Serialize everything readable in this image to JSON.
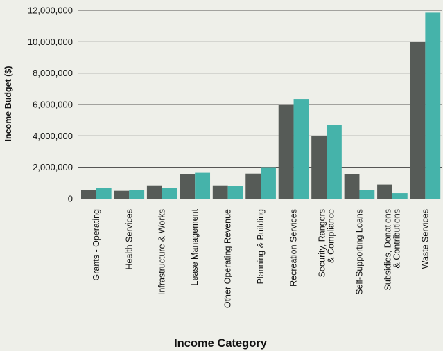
{
  "chart_data": {
    "type": "bar",
    "title": "",
    "xlabel": "Income Category",
    "ylabel": "Income Budget ($)",
    "ylim": [
      0,
      12000000
    ],
    "yticks": [
      "0",
      "2,000,000",
      "4,000,000",
      "6,000,000",
      "8,000,000",
      "10,000,000",
      "12,000,000"
    ],
    "grid": true,
    "categories": [
      [
        "Grants - Operating"
      ],
      [
        "Health Services"
      ],
      [
        "Infrastructure & Works"
      ],
      [
        "Lease Management"
      ],
      [
        "Other Operating Revenue"
      ],
      [
        "Planning & Building"
      ],
      [
        "Recreation Services"
      ],
      [
        "Security, Rangers",
        "& Compliance"
      ],
      [
        "Self-Supporting Loans"
      ],
      [
        "Subsidies, Donations",
        "& Contributions"
      ],
      [
        "Waste Services"
      ]
    ],
    "series": [
      {
        "color": "#565b57",
        "values": [
          550000,
          500000,
          850000,
          1550000,
          850000,
          1600000,
          6000000,
          4000000,
          1550000,
          900000,
          10000000
        ]
      },
      {
        "color": "#45b3aa",
        "values": [
          700000,
          550000,
          700000,
          1650000,
          800000,
          2000000,
          6350000,
          4700000,
          550000,
          350000,
          11850000
        ]
      }
    ]
  }
}
